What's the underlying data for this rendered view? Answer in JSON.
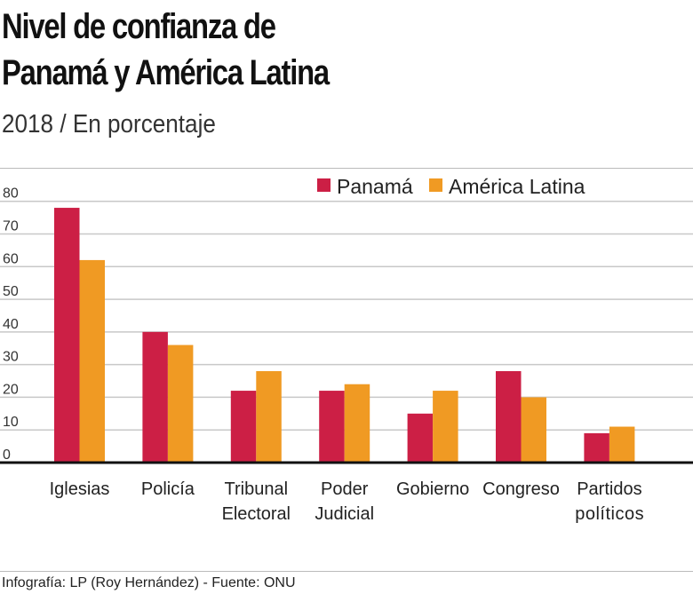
{
  "title_lines": [
    "Nivel de confianza de",
    "Panamá y América Latina"
  ],
  "subtitle": "2018 / En porcentaje",
  "footer": "Infografía: LP (Roy Hernández) - Fuente: ONU",
  "chart_data": {
    "type": "bar",
    "categories": [
      [
        "Iglesias"
      ],
      [
        "Policía"
      ],
      [
        "Tribunal",
        "Electoral"
      ],
      [
        "Poder",
        "Judicial"
      ],
      [
        "Gobierno"
      ],
      [
        "Congreso"
      ],
      [
        "Partidos",
        "políticos"
      ]
    ],
    "series": [
      {
        "name": "Panamá",
        "color": "#cc1f45",
        "values": [
          78,
          40,
          22,
          22,
          15,
          28,
          9
        ]
      },
      {
        "name": "América Latina",
        "color": "#f09a23",
        "values": [
          62,
          36,
          28,
          24,
          22,
          20,
          11
        ]
      }
    ],
    "yticks": [
      0,
      10,
      20,
      30,
      40,
      50,
      60,
      70,
      80
    ],
    "ylim": [
      0,
      80
    ],
    "grid": true,
    "legend": "top-right"
  }
}
